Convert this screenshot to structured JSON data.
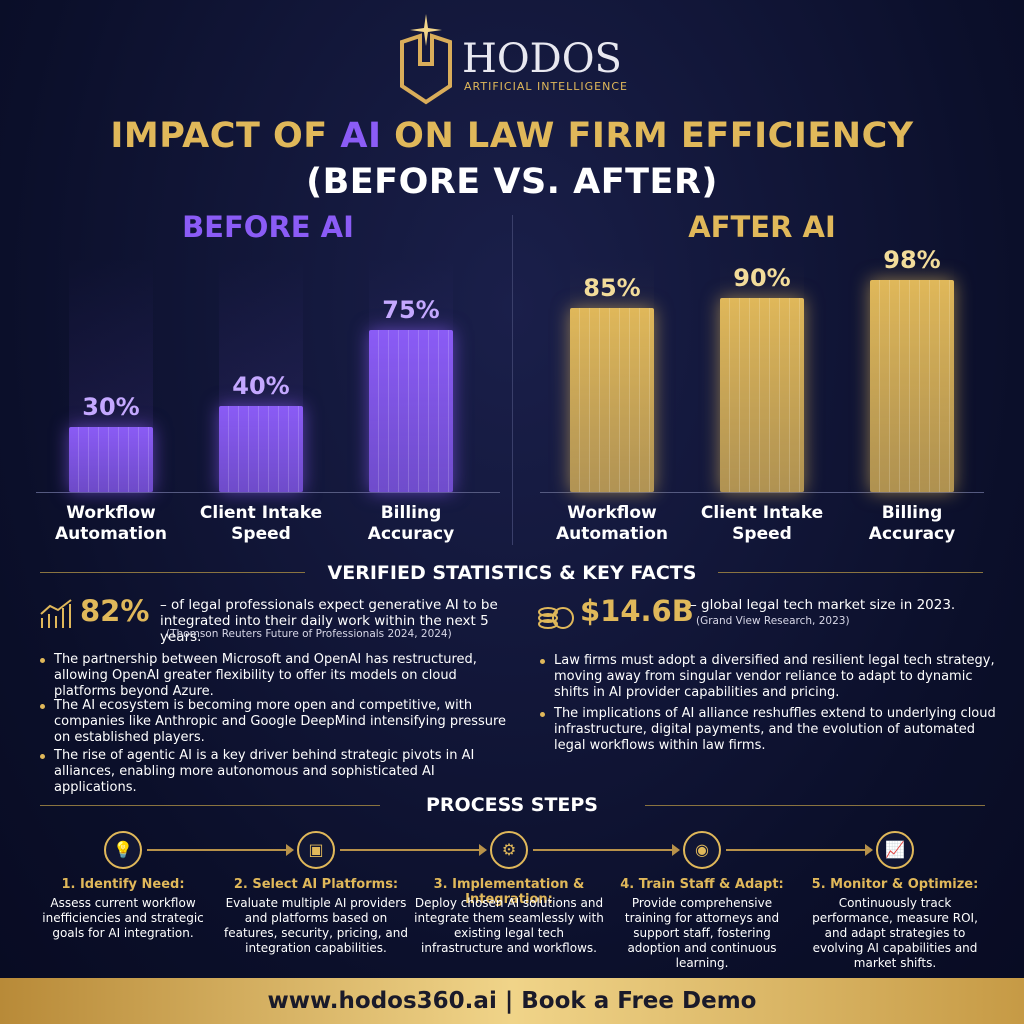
{
  "header": {
    "brand": "HODOS",
    "tagline": "ARTIFICIAL INTELLIGENCE",
    "title_parts": [
      "IMPACT OF ",
      "AI",
      " ON LAW FIRM EFFICIENCY"
    ],
    "subtitle": "(BEFORE VS. AFTER)"
  },
  "chart_data": [
    {
      "type": "bar",
      "title": "BEFORE AI",
      "categories": [
        "Workflow Automation",
        "Client Intake Speed",
        "Billing Accuracy"
      ],
      "values": [
        30,
        40,
        75
      ],
      "value_labels": [
        "30%",
        "40%",
        "75%"
      ],
      "color": "#8b5cf6",
      "ylim": [
        0,
        100
      ]
    },
    {
      "type": "bar",
      "title": "AFTER AI",
      "categories": [
        "Workflow Automation",
        "Client Intake Speed",
        "Billing Accuracy"
      ],
      "values": [
        85,
        90,
        98
      ],
      "value_labels": [
        "85%",
        "90%",
        "98%"
      ],
      "color": "#e0b85a",
      "ylim": [
        0,
        100
      ]
    }
  ],
  "stats": {
    "title": "VERIFIED STATISTICS & KEY FACTS",
    "left": {
      "figure": "82%",
      "text": "– of legal professionals expect generative AI to be integrated into their daily work within the next 5 years.",
      "source": "(Thomson Reuters Future of Professionals 2024, 2024)",
      "bullets": [
        "The partnership between Microsoft and OpenAI has restructured, allowing OpenAI greater flexibility to offer its models on cloud platforms beyond Azure.",
        "The AI ecosystem is becoming more open and competitive, with companies like Anthropic and Google DeepMind intensifying pressure on established players.",
        "The rise of agentic AI is a key driver behind strategic pivots in AI alliances, enabling more autonomous and sophisticated AI applications."
      ]
    },
    "right": {
      "figure": "$14.6B",
      "text": "– global legal tech market size in 2023.",
      "source": "(Grand View Research, 2023)",
      "bullets": [
        "Law firms must adopt a diversified and resilient legal tech strategy, moving away from singular vendor reliance to adapt to dynamic shifts in AI provider capabilities and pricing.",
        "The implications of AI alliance reshuffles extend to underlying cloud infrastructure, digital payments, and the evolution of automated legal workflows within law firms."
      ]
    }
  },
  "process": {
    "title": "PROCESS STEPS",
    "steps": [
      {
        "title": "1. Identify Need:",
        "text": "Assess current workflow inefficiencies and strategic goals for AI integration."
      },
      {
        "title": "2. Select AI Platforms:",
        "text": "Evaluate multiple AI providers and platforms based on features, security, pricing, and integration capabilities."
      },
      {
        "title": "3. Implementation & Integration:",
        "text": "Deploy chosen AI solutions and integrate them seamlessly with existing legal tech infrastructure and workflows."
      },
      {
        "title": "4. Train Staff & Adapt:",
        "text": "Provide comprehensive training for attorneys and support staff, fostering adoption and continuous learning."
      },
      {
        "title": "5. Monitor & Optimize:",
        "text": "Continuously track performance, measure ROI, and adapt strategies to evolving AI capabilities and market shifts."
      }
    ]
  },
  "footer": {
    "url": "www.hodos360.ai",
    "cta": "| Book a Free Demo"
  }
}
